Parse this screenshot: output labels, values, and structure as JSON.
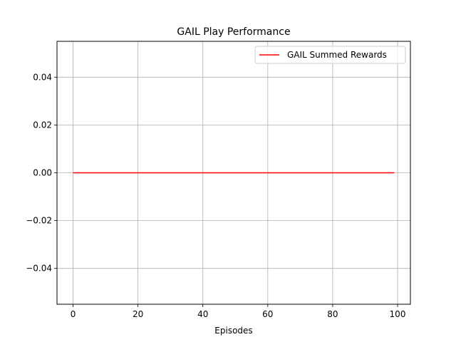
{
  "chart_data": {
    "type": "line",
    "title": "GAIL Play Performance",
    "xlabel": "Episodes",
    "ylabel": "",
    "xlim": [
      -4.95,
      103.95
    ],
    "ylim": [
      -0.055,
      0.055
    ],
    "xticks": [
      0,
      20,
      40,
      60,
      80,
      100
    ],
    "xtick_labels": [
      "0",
      "20",
      "40",
      "60",
      "80",
      "100"
    ],
    "yticks": [
      -0.04,
      -0.02,
      0.0,
      0.02,
      0.04
    ],
    "ytick_labels": [
      "−0.04",
      "−0.02",
      "0.00",
      "0.02",
      "0.04"
    ],
    "grid": true,
    "legend_position": "top-right",
    "series": [
      {
        "name": "GAIL Summed Rewards",
        "color": "#ff0000",
        "x": [
          0,
          99
        ],
        "y": [
          0,
          0
        ]
      }
    ]
  }
}
